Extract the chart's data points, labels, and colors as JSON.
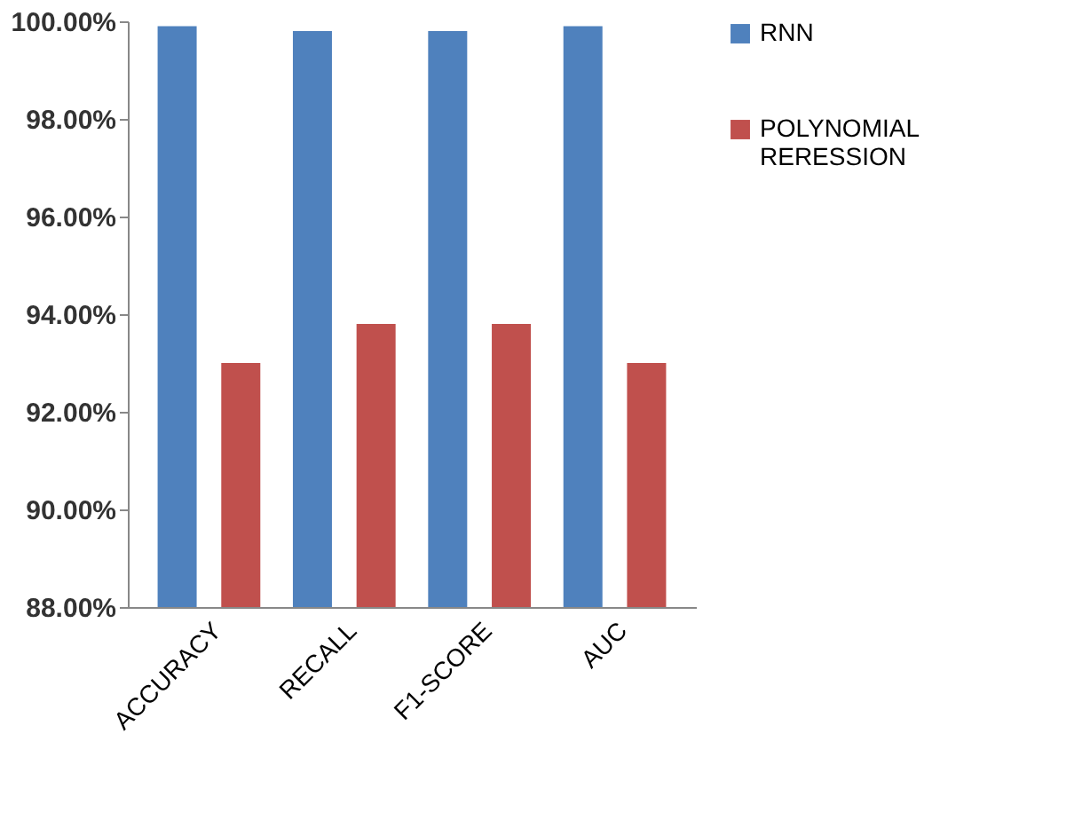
{
  "chart_data": {
    "type": "bar",
    "categories": [
      "ACCURACY",
      "RECALL",
      "F1-SCORE",
      "AUC"
    ],
    "series": [
      {
        "name": "RNN",
        "color": "#4f81bd",
        "values": [
          99.9,
          99.8,
          99.8,
          99.9
        ]
      },
      {
        "name": "POLYNOMIAL RERESSION",
        "color": "#c0504d",
        "values": [
          93.0,
          93.8,
          93.8,
          93.0
        ]
      }
    ],
    "ylim": [
      88,
      100
    ],
    "yticks": [
      {
        "value": 88,
        "label": "88.00%"
      },
      {
        "value": 90,
        "label": "90.00%"
      },
      {
        "value": 92,
        "label": "92.00%"
      },
      {
        "value": 94,
        "label": "94.00%"
      },
      {
        "value": 96,
        "label": "96.00%"
      },
      {
        "value": 98,
        "label": "98.00%"
      },
      {
        "value": 100,
        "label": "100.00%"
      }
    ],
    "grid": false,
    "legend": "right"
  }
}
